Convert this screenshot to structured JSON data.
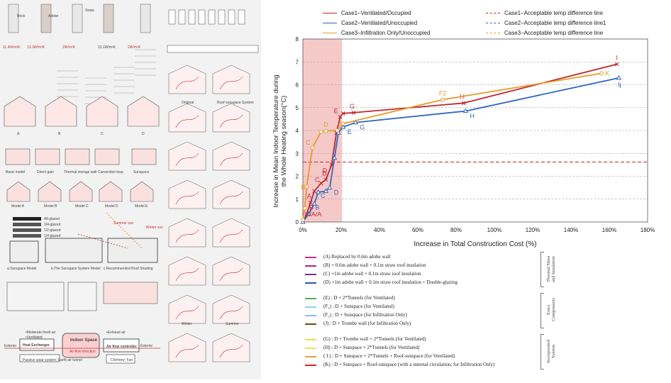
{
  "chart_data": {
    "type": "line",
    "xlabel": "Increase in Total Construction Cost (%)",
    "ylabel": "Increase in Mean Indoor Temperature during the Whole Heating season(°C)",
    "xlim": [
      0,
      180
    ],
    "ylim": [
      0,
      8
    ],
    "x_ticks": [
      "0%",
      "20%",
      "40%",
      "60%",
      "80%",
      "100%",
      "120%",
      "140%",
      "160%",
      "180%"
    ],
    "y_ticks": [
      "0",
      "1",
      "2",
      "3",
      "4",
      "5",
      "6",
      "7",
      "8"
    ],
    "shaded_region": {
      "x_from": 0,
      "x_to": 20.5,
      "color": "#f6c9c9"
    },
    "grid": "horizontal dashed",
    "series": [
      {
        "name": "Case1–Ventilated/Occupied",
        "color": "#c0282e",
        "marker": "x",
        "points": [
          {
            "x": 0,
            "y": 0,
            "label": ""
          },
          {
            "x": 2,
            "y": 0.35,
            "label": ""
          },
          {
            "x": 4,
            "y": 0.85,
            "label": "A"
          },
          {
            "x": 6,
            "y": 1.35,
            "label": ""
          },
          {
            "x": 9.5,
            "y": 1.7,
            "label": ""
          },
          {
            "x": 12,
            "y": 1.85,
            "label": "D"
          },
          {
            "x": 15,
            "y": 2.5,
            "label": ""
          },
          {
            "x": 17.5,
            "y": 3.9,
            "label": ""
          },
          {
            "x": 19.5,
            "y": 4.6,
            "label": "E"
          },
          {
            "x": 21,
            "y": 4.75,
            "label": ""
          },
          {
            "x": 26.5,
            "y": 4.78,
            "label": "G"
          },
          {
            "x": 84,
            "y": 5.2,
            "label": "H"
          },
          {
            "x": 164,
            "y": 6.9,
            "label": "I"
          }
        ]
      },
      {
        "name": "Case2–Ventilated/Unoccupied",
        "color": "#2e66c4",
        "marker": "triangle",
        "points": [
          {
            "x": 0,
            "y": 0,
            "label": ""
          },
          {
            "x": 3,
            "y": 0.35,
            "label": ""
          },
          {
            "x": 6,
            "y": 0.8,
            "label": ""
          },
          {
            "x": 8,
            "y": 1.3,
            "label": ""
          },
          {
            "x": 12,
            "y": 1.35,
            "label": ""
          },
          {
            "x": 14,
            "y": 1.5,
            "label": "D"
          },
          {
            "x": 16.5,
            "y": 2.8,
            "label": ""
          },
          {
            "x": 18.5,
            "y": 3.9,
            "label": ""
          },
          {
            "x": 21,
            "y": 4.15,
            "label": "E"
          },
          {
            "x": 27.5,
            "y": 4.35,
            "label": "G"
          },
          {
            "x": 85,
            "y": 4.85,
            "label": "H"
          },
          {
            "x": 165,
            "y": 6.3,
            "label": "I"
          }
        ]
      },
      {
        "name": "Case3–Infiltration Only/Unoccupied",
        "color": "#e89a2c",
        "marker": "circle",
        "points": [
          {
            "x": 0,
            "y": 0.1,
            "label": ""
          },
          {
            "x": 1,
            "y": 0.6,
            "label": ""
          },
          {
            "x": 2,
            "y": 1.55,
            "label": "B"
          },
          {
            "x": 5,
            "y": 3.25,
            "label": "C"
          },
          {
            "x": 9.5,
            "y": 3.95,
            "label": ""
          },
          {
            "x": 12,
            "y": 3.98,
            "label": "D"
          },
          {
            "x": 18,
            "y": 4.0,
            "label": "J"
          },
          {
            "x": 21,
            "y": 4.3,
            "label": ""
          },
          {
            "x": 73,
            "y": 5.35,
            "label": "F2"
          },
          {
            "x": 156,
            "y": 6.5,
            "label": "K"
          }
        ]
      }
    ],
    "reference_lines": [
      {
        "name": "Case1–Acceptable temp difference line",
        "color": "#c0282e",
        "y": 2.62
      },
      {
        "name": "Case2–Acceptable temp difference line1",
        "color": "#2e66c4",
        "y": null
      },
      {
        "name": "Case3–Acceptable temp difference line",
        "color": "#e89a2c",
        "y": null
      }
    ],
    "extra_labels": [
      {
        "text": "A/A/A",
        "x": 5.5,
        "y": 0.25,
        "color": "#c0282e"
      },
      {
        "text": "B",
        "x": 4.5,
        "y": 0.55,
        "color": "#c0282e"
      },
      {
        "text": "B",
        "x": 7.5,
        "y": 0.55,
        "color": "#2e66c4"
      },
      {
        "text": "C",
        "x": 10.5,
        "y": 1.05,
        "color": "#2e66c4"
      },
      {
        "text": "C",
        "x": 7.5,
        "y": 1.75,
        "color": "#c0282e"
      },
      {
        "text": "D",
        "x": 11.5,
        "y": 2.15,
        "color": "#c0282e"
      },
      {
        "text": "I",
        "x": 165,
        "y": 5.9,
        "color": "#2e66c4"
      }
    ]
  },
  "descriptions": {
    "groups": [
      {
        "title": "Thermal Mass and Insulation",
        "items": [
          {
            "color": "#d62a8c",
            "text": "(A)  Replaced by 0.6m adobe wall"
          },
          {
            "color": "#9e2a8c",
            "text": "(B)  + 0.6m adobe wall + 0.1m straw roof insulation"
          },
          {
            "color": "#7a2a8c",
            "text": "(C)  +1m adobe wall + 0.1m straw roof insulation"
          },
          {
            "color": "#2a56b0",
            "text": "(D)  +1m adobe wall + 0.1m straw roof insulation + Double-glazing"
          }
        ]
      },
      {
        "title": "Extra Components",
        "items": [
          {
            "color": "#4caf50",
            "text": "(E)  : D + 2*Tunnels                                   (for Ventilated)"
          },
          {
            "color": "#8fd1e8",
            "text": "(F₁)  : D + Sunspace                               (for Ventilated)"
          },
          {
            "color": "#7fc4e8",
            "text": "(F₂)  : D + Sunspace                  (for Infiltration Only)"
          },
          {
            "color": "#6b4e16",
            "text": "(J)  : D + Trombe wall                  (for Infiltration Only)"
          }
        ]
      },
      {
        "title": "Incorporated System",
        "items": [
          {
            "color": "#d8e84a",
            "text": "(G)  : D + Trombe wall + 2*Tunnels                           (for Ventilated)"
          },
          {
            "color": "#f2dc6a",
            "text": "(H)  : D + Sunspace + 2*Tunnels                              (for Ventilated)"
          },
          {
            "color": "#f0a030",
            "text": "( I )  : D + Sunspace + 2*Tunnels + Roof-sunspace         (for Ventilated)"
          },
          {
            "color": "#d0282e",
            "text": "(K)  : D + Sunspace + Roof-sunspace (with a internal circulation; for Infiltration Only)"
          }
        ]
      }
    ]
  },
  "left_panel": {
    "labels": {
      "u_a": "11.4W/m²K",
      "u_b": "13.3W/m²K",
      "u_c": "2W/m²K",
      "u_d": "31.1W/m²K",
      "u_e": "2W/m²K",
      "brick": "Brick",
      "adobe": "Adobe",
      "straw": "Straw",
      "sections": [
        "A",
        "B",
        "C",
        "D"
      ],
      "models": [
        "Basic model",
        "Direct gain",
        "Thermal storage wall",
        "Convection loop",
        "Sunspace"
      ],
      "sub_models": [
        "Model A",
        "Model B",
        "Model C",
        "Model D",
        "Model E"
      ],
      "glazing": [
        "All-glazed",
        "3/4-glazed",
        "1/2-glazed",
        "1/4-glazed"
      ],
      "sunspace_captions": [
        "a.Sunspace Model",
        "b.The Sunspace System Model",
        "c.Recommended Roof Shading"
      ],
      "summer_sun": "Summer sun",
      "winter_sun": "Winter sun",
      "flow_heat": "Heat Exchanger",
      "flow_indoor": "Indoor Space",
      "flow_air": "Air flow controller",
      "flow_exterior_l": "Exterior",
      "flow_exterior_r": "Exterior",
      "flow_passive": "Passive solar system; Earth-air tunnel",
      "flow_chimney": "Chimney; Fan",
      "flow_air_dir": "Air flow direction",
      "flow_ventilated": "•Ventilated",
      "flow_fresh": "•Moderate fresh air",
      "flow_exhaust": "•Exhaust air",
      "captions_right": [
        "Original",
        "Roof-sunspace System",
        "Winter",
        "Summer"
      ]
    }
  }
}
